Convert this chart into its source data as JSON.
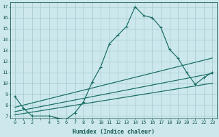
{
  "xlabel": "Humidex (Indice chaleur)",
  "xlim": [
    -0.5,
    23.5
  ],
  "ylim": [
    6.8,
    17.4
  ],
  "yticks": [
    7,
    8,
    9,
    10,
    11,
    12,
    13,
    14,
    15,
    16,
    17
  ],
  "background_color": "#cce8ec",
  "grid_color": "#aacdd4",
  "line_color": "#1a6e64",
  "line1_x": [
    0,
    1,
    2,
    4,
    5,
    6,
    7,
    8,
    9,
    10,
    11,
    12,
    13,
    14,
    15,
    16,
    17,
    18,
    19,
    20,
    21,
    22,
    23
  ],
  "line1_y": [
    8.8,
    7.7,
    7.0,
    7.0,
    6.8,
    6.7,
    7.3,
    8.3,
    10.1,
    11.5,
    13.6,
    14.4,
    15.2,
    17.0,
    16.2,
    16.0,
    15.1,
    13.1,
    12.3,
    11.0,
    9.9,
    10.5,
    11.0
  ],
  "line2_x": [
    0,
    23
  ],
  "line2_y": [
    7.8,
    12.3
  ],
  "line3_x": [
    0,
    23
  ],
  "line3_y": [
    7.4,
    10.9
  ],
  "line4_x": [
    0,
    23
  ],
  "line4_y": [
    7.1,
    10.0
  ],
  "xtick_labels": [
    "0",
    "1",
    "2",
    "",
    "4",
    "5",
    "6",
    "7",
    "8",
    "9",
    "10",
    "11",
    "12",
    "13",
    "14",
    "15",
    "16",
    "17",
    "18",
    "19",
    "20",
    "21",
    "22",
    "23"
  ],
  "text_color": "#1a5c52",
  "tick_fontsize": 5.0,
  "xlabel_fontsize": 6.0
}
